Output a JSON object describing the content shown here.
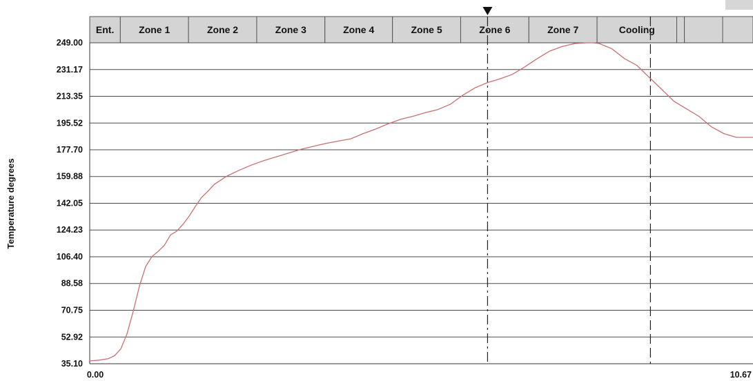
{
  "chart_data": {
    "type": "line",
    "title": "",
    "xlabel": "",
    "ylabel": "Temperature  degrees",
    "xlim": [
      0.0,
      10.67
    ],
    "ylim": [
      35.1,
      249.0
    ],
    "x_tick_labels": [
      "0.00",
      "10.67"
    ],
    "y_tick_labels": [
      "249.00",
      "231.17",
      "213.35",
      "195.52",
      "177.70",
      "159.88",
      "142.05",
      "124.23",
      "106.40",
      "88.58",
      "70.75",
      "52.92",
      "35.10"
    ],
    "y_ticks": [
      249.0,
      231.17,
      213.35,
      195.52,
      177.7,
      159.88,
      142.05,
      124.23,
      106.4,
      88.58,
      70.75,
      52.92,
      35.1
    ],
    "grid": true,
    "zones": [
      {
        "label": "Ent.",
        "x_start": 0.0,
        "x_end": 0.48
      },
      {
        "label": "Zone 1",
        "x_start": 0.48,
        "x_end": 1.55
      },
      {
        "label": "Zone 2",
        "x_start": 1.55,
        "x_end": 2.62
      },
      {
        "label": "Zone 3",
        "x_start": 2.62,
        "x_end": 3.69
      },
      {
        "label": "Zone 4",
        "x_start": 3.69,
        "x_end": 4.75
      },
      {
        "label": "Zone 5",
        "x_start": 4.75,
        "x_end": 5.82
      },
      {
        "label": "Zone 6",
        "x_start": 5.82,
        "x_end": 6.89
      },
      {
        "label": "Zone 7",
        "x_start": 6.89,
        "x_end": 7.96
      },
      {
        "label": "Cooling",
        "x_start": 7.96,
        "x_end": 9.21
      },
      {
        "label": "",
        "x_start": 9.21,
        "x_end": 9.33
      },
      {
        "label": "",
        "x_start": 9.33,
        "x_end": 9.93
      }
    ],
    "markers": [
      {
        "type": "dash-dot",
        "x": 6.4,
        "has_triangle": true
      },
      {
        "type": "dashed",
        "x": 9.02,
        "has_triangle": false
      }
    ],
    "series": [
      {
        "color": "#c87070",
        "x": [
          0.0,
          0.15,
          0.3,
          0.4,
          0.5,
          0.6,
          0.7,
          0.8,
          0.9,
          1.0,
          1.1,
          1.2,
          1.3,
          1.4,
          1.5,
          1.6,
          1.7,
          1.8,
          1.9,
          2.0,
          2.2,
          2.4,
          2.6,
          2.8,
          3.0,
          3.2,
          3.4,
          3.6,
          3.8,
          4.0,
          4.2,
          4.4,
          4.6,
          4.8,
          5.0,
          5.2,
          5.4,
          5.6,
          5.8,
          6.0,
          6.2,
          6.4,
          6.6,
          6.8,
          7.0,
          7.2,
          7.4,
          7.6,
          7.8,
          8.0,
          8.1,
          8.2,
          8.4,
          8.6,
          8.8,
          9.0,
          9.2,
          9.4,
          9.6,
          9.8,
          10.0,
          10.2,
          10.4,
          10.67
        ],
        "y": [
          37.0,
          37.5,
          38.5,
          40.5,
          45.0,
          55.0,
          70.0,
          87.0,
          100.0,
          106.5,
          110.0,
          114.0,
          121.0,
          123.5,
          128.0,
          133.5,
          140.0,
          146.0,
          150.0,
          154.5,
          160.0,
          164.0,
          167.5,
          170.5,
          173.0,
          175.5,
          178.0,
          180.0,
          182.0,
          183.5,
          185.0,
          188.5,
          191.5,
          195.0,
          198.0,
          200.0,
          202.5,
          204.5,
          208.0,
          214.0,
          219.0,
          222.5,
          225.0,
          228.0,
          233.0,
          238.5,
          243.5,
          246.5,
          248.5,
          249.0,
          249.0,
          248.5,
          245.0,
          238.5,
          234.0,
          226.0,
          218.0,
          210.0,
          205.0,
          200.0,
          193.0,
          188.5,
          186.0,
          186.0
        ]
      }
    ]
  }
}
